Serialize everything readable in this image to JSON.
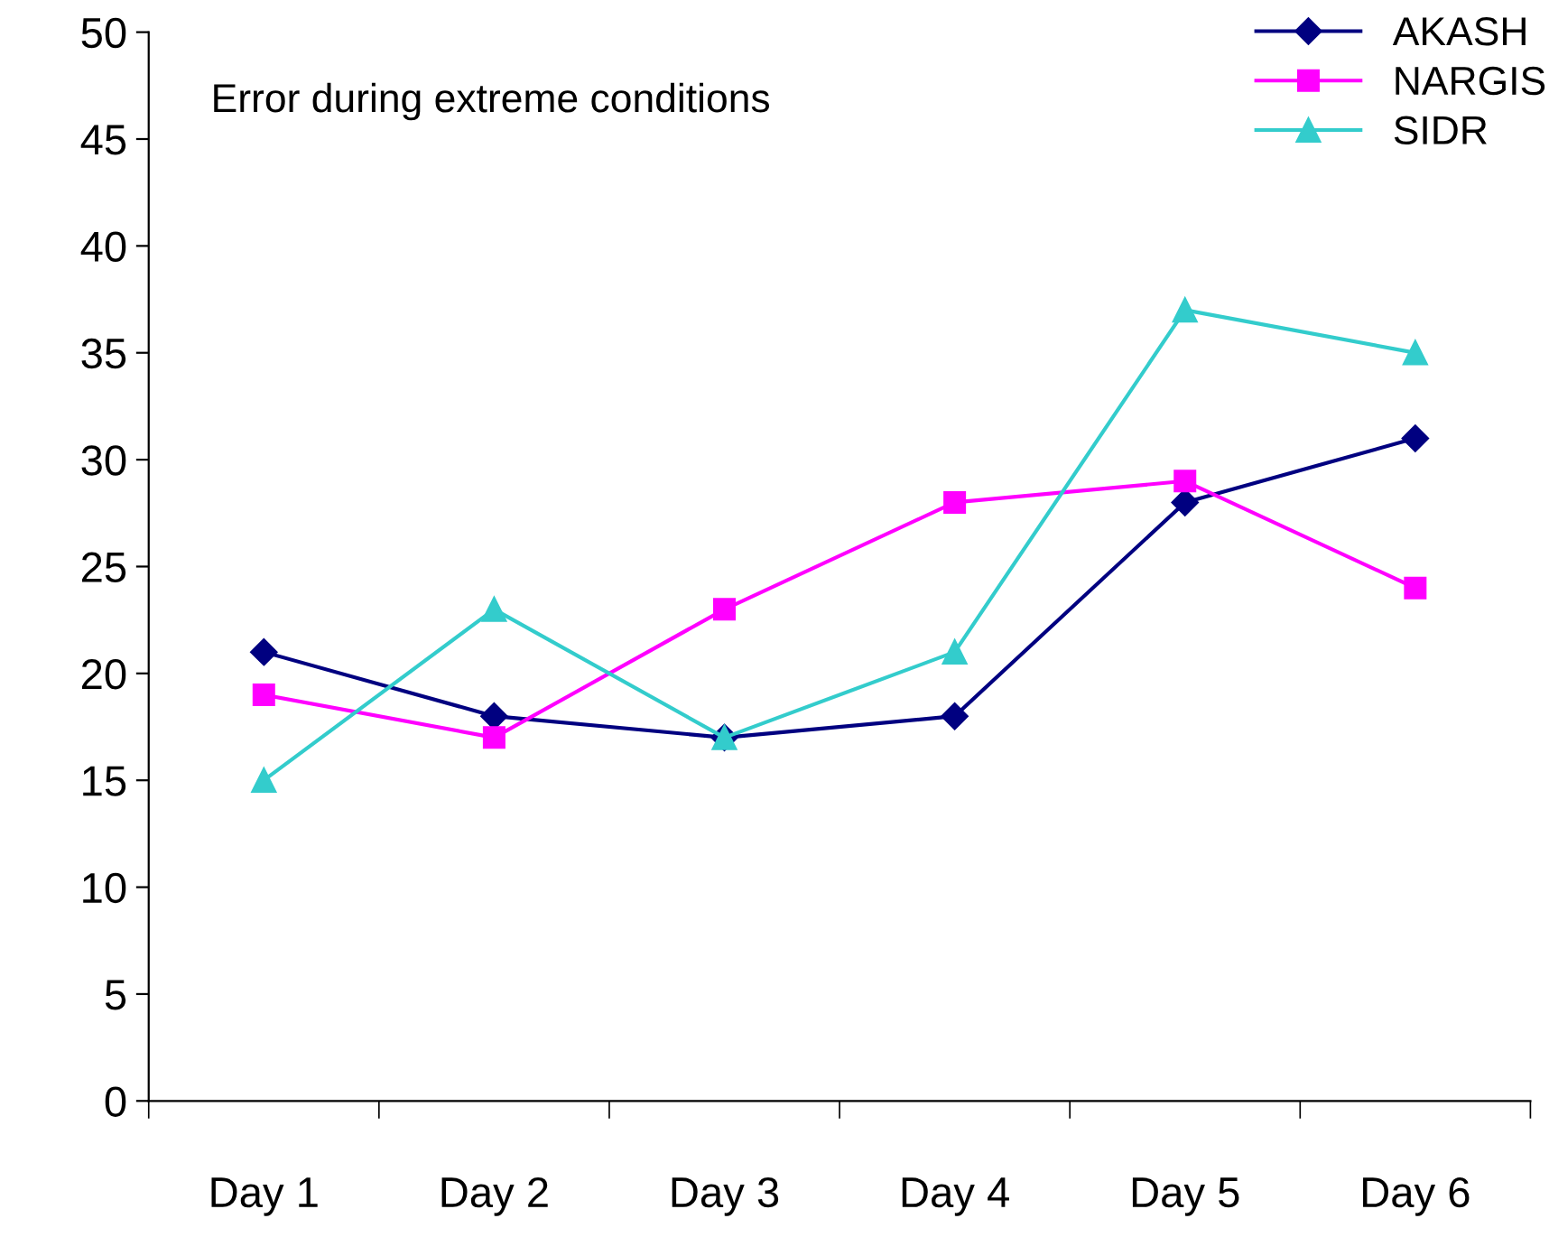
{
  "chart_data": {
    "type": "line",
    "title": "Error during extreme conditions",
    "categories": [
      "Day 1",
      "Day 2",
      "Day 3",
      "Day 4",
      "Day 5",
      "Day 6"
    ],
    "series": [
      {
        "name": "AKASH",
        "color": "#000080",
        "marker": "diamond",
        "values": [
          21,
          18,
          17,
          18,
          28,
          31
        ]
      },
      {
        "name": "NARGIS",
        "color": "#ff00ff",
        "marker": "square",
        "values": [
          19,
          17,
          23,
          28,
          29,
          24
        ]
      },
      {
        "name": "SIDR",
        "color": "#33cccc",
        "marker": "triangle",
        "values": [
          15,
          23,
          17,
          21,
          37,
          35
        ]
      }
    ],
    "ylim": [
      0,
      50
    ],
    "yticks": [
      0,
      5,
      10,
      15,
      20,
      25,
      30,
      35,
      40,
      45,
      50
    ],
    "grid": false,
    "legend": "top right",
    "line_style": "solid"
  }
}
